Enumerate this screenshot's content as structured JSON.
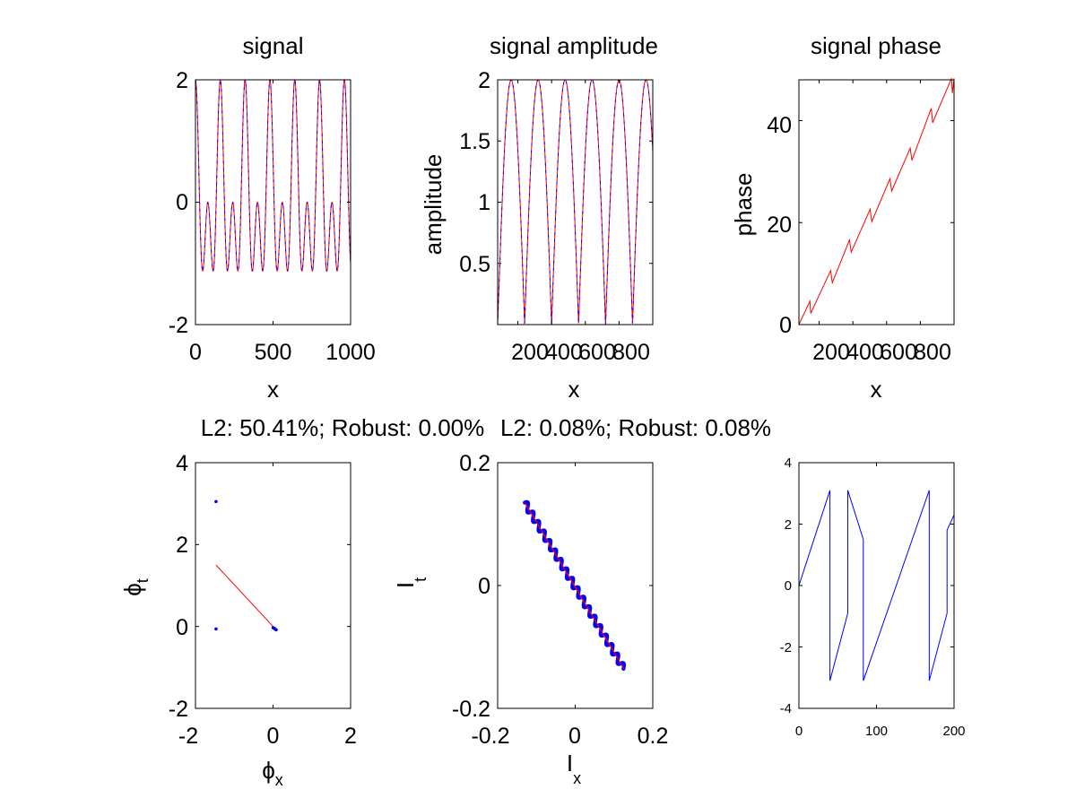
{
  "chart_data": [
    {
      "id": "signal",
      "type": "line",
      "title": "signal",
      "xlabel": "x",
      "ylabel": "",
      "xlim": [
        0,
        1000
      ],
      "ylim": [
        -2,
        2
      ],
      "xticks": [
        "0",
        "500",
        "1000"
      ],
      "yticks": [
        "-2",
        "0",
        "2"
      ],
      "model": {
        "fn": "cos(2*pi*f*x) + cos(2*pi*2*f*x)",
        "f": 0.00625
      },
      "series": [
        {
          "name": "",
          "color": "#ff0000",
          "style": "solid"
        },
        {
          "name": "",
          "color": "#0000ff",
          "style": "dashed"
        }
      ],
      "grid": false,
      "legend": "none"
    },
    {
      "id": "amplitude",
      "type": "line",
      "title": "signal amplitude",
      "xlabel": "x",
      "ylabel": "amplitude",
      "xlim": [
        80,
        1000
      ],
      "ylim": [
        0,
        2
      ],
      "xticks": [
        "200",
        "400",
        "600",
        "800"
      ],
      "yticks": [
        "0.5",
        "1",
        "1.5",
        "2"
      ],
      "model": {
        "fn": "2*|cos(pi*f*x)|",
        "f": 0.00625
      },
      "series": [
        {
          "name": "",
          "color": "#ff0000",
          "style": "solid"
        },
        {
          "name": "",
          "color": "#0000ff",
          "style": "dashed"
        }
      ],
      "grid": false,
      "legend": "none"
    },
    {
      "id": "phase",
      "type": "line",
      "title": "signal phase",
      "xlabel": "x",
      "ylabel": "phase",
      "xlim": [
        80,
        1000
      ],
      "ylim": [
        0,
        48
      ],
      "xticks": [
        "200",
        "400",
        "600",
        "800"
      ],
      "yticks": [
        "0",
        "20",
        "40"
      ],
      "points": [
        [
          80,
          0
        ],
        [
          145,
          4.6
        ],
        [
          150,
          2.2
        ],
        [
          268,
          10.6
        ],
        [
          278,
          8.2
        ],
        [
          380,
          16.6
        ],
        [
          390,
          14.2
        ],
        [
          502,
          22.6
        ],
        [
          512,
          20.2
        ],
        [
          620,
          28.6
        ],
        [
          630,
          26.2
        ],
        [
          740,
          34.6
        ],
        [
          750,
          32.2
        ],
        [
          865,
          42.4
        ],
        [
          873,
          39.6
        ],
        [
          985,
          48.3
        ],
        [
          990,
          45.4
        ],
        [
          1000,
          48.3
        ]
      ],
      "series": [
        {
          "name": "",
          "color": "#ff0000",
          "style": "solid"
        }
      ],
      "grid": false,
      "legend": "none"
    },
    {
      "id": "phi",
      "type": "scatter",
      "title": "L2: 50.41%; Robust: 0.00%",
      "xlabel": "ϕ",
      "xlabel_sub": "x",
      "ylabel": "ϕ",
      "ylabel_sub": "t",
      "xlim": [
        -2,
        2
      ],
      "ylim": [
        -2,
        4
      ],
      "xticks": [
        "-2",
        "0",
        "2"
      ],
      "yticks": [
        "-2",
        "0",
        "2",
        "4"
      ],
      "points": [
        [
          -1.47,
          3.05
        ],
        [
          -1.47,
          -0.06
        ],
        [
          0.0,
          -0.03
        ],
        [
          0.04,
          -0.05
        ],
        [
          0.08,
          -0.08
        ]
      ],
      "fit_line": [
        [
          -1.47,
          1.5
        ],
        [
          0.08,
          -0.08
        ]
      ],
      "point_color": "#0000ff",
      "line_color": "#ff0000",
      "grid": false,
      "legend": "none"
    },
    {
      "id": "intensity",
      "type": "scatter",
      "title": "L2: 0.08%; Robust: 0.08%",
      "xlabel": "I",
      "xlabel_sub": "x",
      "ylabel": "I",
      "ylabel_sub": "t",
      "xlim": [
        -0.2,
        0.2
      ],
      "ylim": [
        -0.2,
        0.2
      ],
      "xticks": [
        "-0.2",
        "0",
        "0.2"
      ],
      "yticks": [
        "-0.2",
        "0",
        "0.2"
      ],
      "cloud": {
        "from": [
          -0.13,
          0.135
        ],
        "to": [
          0.125,
          -0.135
        ],
        "width": 0.004
      },
      "fit_line": [
        [
          -0.13,
          0.135
        ],
        [
          0.125,
          -0.135
        ]
      ],
      "point_color": "#0000ff",
      "line_color": "#ff0000",
      "grid": false,
      "legend": "none"
    },
    {
      "id": "wrapped",
      "type": "line",
      "title": "",
      "xlabel": "",
      "ylabel": "",
      "xlim": [
        0,
        200
      ],
      "ylim": [
        -4,
        4
      ],
      "xticks": [
        "0",
        "100",
        "200"
      ],
      "yticks": [
        "-4",
        "-2",
        "0",
        "2",
        "4"
      ],
      "points": [
        [
          0,
          0
        ],
        [
          40,
          3.1
        ],
        [
          40,
          -3.1
        ],
        [
          63,
          -0.9
        ],
        [
          63,
          3.1
        ],
        [
          83,
          1.5
        ],
        [
          83,
          -3.1
        ],
        [
          168,
          3.1
        ],
        [
          168,
          -3.1
        ],
        [
          191,
          -0.9
        ],
        [
          191,
          1.8
        ],
        [
          200,
          2.3
        ]
      ],
      "series": [
        {
          "name": "",
          "color": "#0000ff",
          "style": "solid"
        }
      ],
      "grid": false,
      "legend": "none"
    }
  ]
}
